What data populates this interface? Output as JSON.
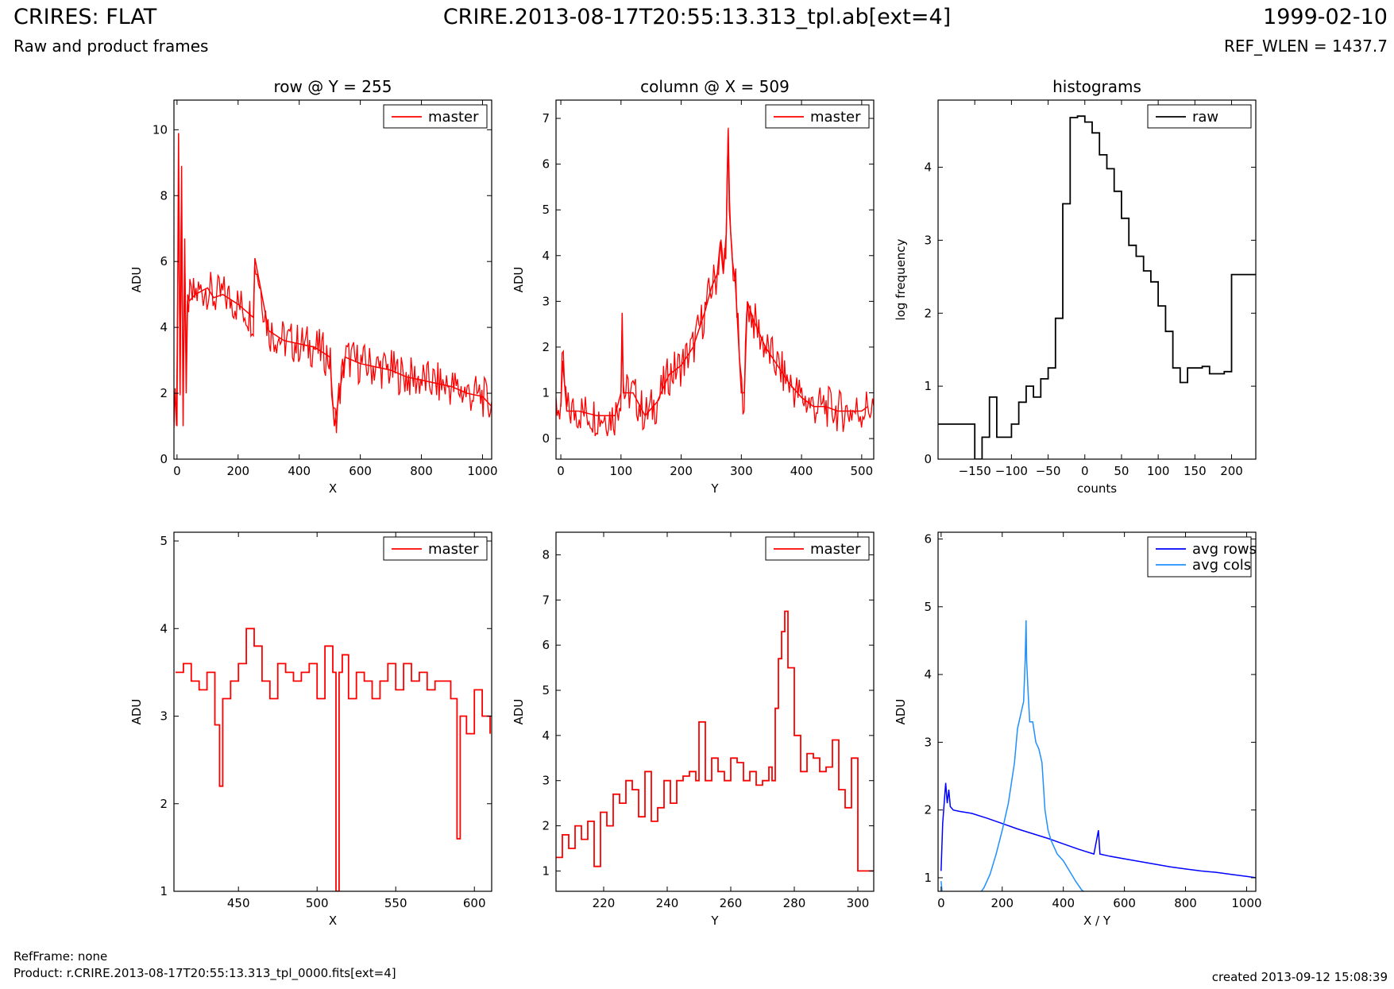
{
  "header": {
    "title_left": "CRIRES: FLAT",
    "subtitle_left": "Raw and product frames",
    "title_center": "CRIRE.2013-08-17T20:55:13.313_tpl.ab[ext=4]",
    "title_right": "1999-02-10",
    "subtitle_right": "REF_WLEN = 1437.7"
  },
  "footer": {
    "ref_frame": "RefFrame: none",
    "product": "Product: r.CRIRE.2013-08-17T20:55:13.313_tpl_0000.fits[ext=4]",
    "created": "created 2013-09-12 15:08:39"
  },
  "colors": {
    "master": "#ff0000",
    "raw": "#000000",
    "avg_rows": "#0000ff",
    "avg_cols": "#1e90ff"
  },
  "chart_data": [
    {
      "type": "line",
      "title": "row @ Y = 255",
      "xlabel": "X",
      "ylabel": "ADU",
      "xlim": [
        -10,
        1030
      ],
      "ylim": [
        0,
        10.9
      ],
      "xticks": [
        0,
        200,
        400,
        600,
        800,
        1000
      ],
      "yticks": [
        0,
        2,
        4,
        6,
        8,
        10
      ],
      "legend": "top-right",
      "series": [
        {
          "name": "master",
          "x": [
            0,
            5,
            10,
            15,
            20,
            25,
            30,
            35,
            40,
            60,
            80,
            100,
            120,
            150,
            200,
            250,
            255,
            300,
            350,
            400,
            450,
            500,
            515,
            550,
            600,
            650,
            700,
            750,
            800,
            850,
            900,
            950,
            1000,
            1030
          ],
          "y": [
            1.0,
            9.9,
            2.0,
            8.9,
            1.0,
            6.7,
            2.0,
            5.0,
            4.8,
            5.0,
            5.1,
            5.2,
            4.9,
            5.0,
            4.7,
            4.3,
            6.1,
            3.9,
            3.6,
            3.5,
            3.4,
            3.1,
            1.0,
            3.1,
            2.9,
            2.8,
            2.7,
            2.5,
            2.4,
            2.3,
            2.2,
            2.0,
            1.9,
            1.6
          ]
        }
      ]
    },
    {
      "type": "line",
      "title": "column @ X = 509",
      "xlabel": "Y",
      "ylabel": "ADU",
      "xlim": [
        -8,
        520
      ],
      "ylim": [
        -0.45,
        7.4
      ],
      "xticks": [
        0,
        100,
        200,
        300,
        400,
        500
      ],
      "yticks": [
        0,
        1,
        2,
        3,
        4,
        5,
        6,
        7
      ],
      "legend": "top-right",
      "series": [
        {
          "name": "master",
          "x": [
            0,
            3,
            10,
            30,
            60,
            90,
            100,
            102,
            104,
            120,
            140,
            160,
            180,
            200,
            220,
            240,
            250,
            260,
            265,
            270,
            275,
            278,
            280,
            285,
            290,
            300,
            305,
            310,
            320,
            340,
            360,
            380,
            400,
            420,
            440,
            460,
            480,
            500,
            510
          ],
          "y": [
            0.7,
            1.7,
            0.6,
            0.6,
            0.5,
            0.5,
            1.0,
            2.75,
            1.0,
            1.0,
            0.5,
            0.8,
            1.4,
            1.6,
            2.0,
            2.8,
            3.3,
            3.6,
            4.3,
            3.6,
            4.5,
            6.75,
            5.0,
            3.9,
            3.4,
            1.0,
            1.0,
            3.0,
            2.6,
            2.0,
            1.6,
            1.2,
            0.9,
            0.7,
            0.7,
            0.6,
            0.6,
            0.6,
            0.7
          ]
        }
      ]
    },
    {
      "type": "line",
      "title": "histograms",
      "xlabel": "counts",
      "ylabel": "log frequency",
      "xlim": [
        -200,
        233
      ],
      "ylim": [
        0,
        4.92
      ],
      "xticks": [
        -150,
        -100,
        -50,
        0,
        50,
        100,
        150,
        200
      ],
      "yticks": [
        0,
        1,
        2,
        3,
        4
      ],
      "legend": "top-right",
      "step": true,
      "series": [
        {
          "name": "raw",
          "x": [
            -200,
            -170,
            -160,
            -150,
            -140,
            -130,
            -120,
            -100,
            -90,
            -80,
            -70,
            -60,
            -50,
            -40,
            -30,
            -20,
            -10,
            0,
            10,
            20,
            30,
            40,
            50,
            60,
            70,
            80,
            90,
            100,
            110,
            120,
            130,
            140,
            150,
            160,
            170,
            190,
            200,
            210,
            220,
            233
          ],
          "y": [
            0.48,
            0.48,
            0.48,
            0.0,
            0.3,
            0.85,
            0.3,
            0.48,
            0.78,
            1.0,
            0.85,
            1.1,
            1.25,
            1.93,
            3.5,
            4.68,
            4.7,
            4.62,
            4.47,
            4.17,
            3.98,
            3.67,
            3.3,
            2.93,
            2.78,
            2.58,
            2.43,
            2.1,
            1.75,
            1.25,
            1.05,
            1.25,
            1.25,
            1.27,
            1.17,
            1.2,
            2.53,
            2.53,
            2.53,
            2.53
          ]
        }
      ]
    },
    {
      "type": "line",
      "xlabel": "X",
      "ylabel": "ADU",
      "xlim": [
        409,
        611
      ],
      "ylim": [
        1,
        5.1
      ],
      "xticks": [
        450,
        500,
        550,
        600
      ],
      "yticks": [
        1,
        2,
        3,
        4,
        5
      ],
      "legend": "top-right",
      "step": true,
      "series": [
        {
          "name": "master",
          "x": [
            410,
            415,
            420,
            425,
            430,
            435,
            438,
            440,
            445,
            450,
            455,
            460,
            465,
            470,
            475,
            480,
            485,
            490,
            495,
            500,
            505,
            510,
            512,
            514,
            516,
            520,
            525,
            530,
            535,
            540,
            545,
            550,
            555,
            560,
            565,
            570,
            575,
            580,
            585,
            589,
            591,
            595,
            600,
            605,
            610
          ],
          "y": [
            3.5,
            3.6,
            3.4,
            3.3,
            3.5,
            2.9,
            2.2,
            3.2,
            3.4,
            3.6,
            4.0,
            3.8,
            3.4,
            3.2,
            3.6,
            3.5,
            3.4,
            3.5,
            3.6,
            3.2,
            3.8,
            3.5,
            1.0,
            3.5,
            3.7,
            3.2,
            3.5,
            3.4,
            3.2,
            3.4,
            3.6,
            3.3,
            3.6,
            3.4,
            3.5,
            3.3,
            3.4,
            3.4,
            3.2,
            1.6,
            3.0,
            2.8,
            3.3,
            3.0,
            2.8
          ]
        }
      ]
    },
    {
      "type": "line",
      "xlabel": "Y",
      "ylabel": "ADU",
      "xlim": [
        205,
        305
      ],
      "ylim": [
        0.55,
        8.5
      ],
      "xticks": [
        220,
        240,
        260,
        280,
        300
      ],
      "yticks": [
        1,
        2,
        3,
        4,
        5,
        6,
        7,
        8
      ],
      "legend": "top-right",
      "step": true,
      "series": [
        {
          "name": "master",
          "x": [
            205,
            207,
            209,
            211,
            213,
            215,
            217,
            219,
            221,
            223,
            225,
            227,
            229,
            231,
            233,
            235,
            237,
            239,
            241,
            243,
            245,
            247,
            249,
            250,
            252,
            254,
            256,
            258,
            260,
            262,
            264,
            266,
            268,
            270,
            272,
            273,
            274,
            275,
            276,
            277,
            278,
            280,
            282,
            284,
            286,
            288,
            290,
            292,
            294,
            296,
            298,
            300,
            302,
            305
          ],
          "y": [
            1.3,
            1.8,
            1.5,
            2.0,
            1.7,
            2.1,
            1.1,
            2.3,
            2.0,
            2.7,
            2.5,
            3.0,
            2.8,
            2.2,
            3.2,
            2.1,
            2.4,
            3.0,
            2.5,
            3.0,
            3.1,
            3.2,
            3.0,
            4.3,
            3.0,
            3.5,
            3.2,
            3.0,
            3.5,
            3.4,
            3.0,
            3.2,
            2.9,
            3.0,
            3.3,
            3.0,
            4.6,
            5.7,
            6.3,
            6.75,
            5.5,
            4.0,
            3.2,
            3.6,
            3.5,
            3.2,
            3.3,
            3.9,
            2.8,
            2.4,
            3.5,
            1.0,
            1.0,
            1.0
          ]
        }
      ]
    },
    {
      "type": "line",
      "xlabel": "X / Y",
      "ylabel": "ADU",
      "xlim": [
        -10,
        1030
      ],
      "ylim": [
        0.8,
        6.1
      ],
      "xticks": [
        0,
        200,
        400,
        600,
        800,
        1000
      ],
      "yticks": [
        1,
        2,
        3,
        4,
        5,
        6
      ],
      "legend": "top-right",
      "series": [
        {
          "name": "avg rows",
          "x": [
            0,
            5,
            10,
            15,
            20,
            25,
            30,
            40,
            60,
            100,
            150,
            200,
            250,
            300,
            350,
            400,
            450,
            500,
            515,
            520,
            550,
            600,
            650,
            700,
            750,
            800,
            850,
            900,
            950,
            1000,
            1030
          ],
          "y": [
            1.1,
            1.8,
            2.1,
            2.4,
            2.1,
            2.3,
            2.05,
            2.0,
            1.98,
            1.95,
            1.88,
            1.8,
            1.72,
            1.65,
            1.58,
            1.5,
            1.42,
            1.35,
            1.7,
            1.35,
            1.32,
            1.28,
            1.24,
            1.2,
            1.16,
            1.13,
            1.1,
            1.08,
            1.05,
            1.02,
            1.0
          ]
        },
        {
          "name": "avg cols",
          "x": [
            0,
            5,
            20,
            50,
            80,
            100,
            120,
            140,
            160,
            180,
            200,
            220,
            240,
            250,
            260,
            270,
            275,
            278,
            280,
            285,
            290,
            300,
            310,
            320,
            330,
            340,
            350,
            360,
            380,
            400,
            420,
            440,
            460,
            480,
            500,
            510
          ],
          "y": [
            0.95,
            0.7,
            0.65,
            0.63,
            0.63,
            0.66,
            0.73,
            0.85,
            1.05,
            1.35,
            1.7,
            2.1,
            2.7,
            3.2,
            3.4,
            3.6,
            4.2,
            4.8,
            4.2,
            3.7,
            3.3,
            3.3,
            3.0,
            2.9,
            2.7,
            2.0,
            1.7,
            1.55,
            1.35,
            1.25,
            1.1,
            0.95,
            0.82,
            0.75,
            0.7,
            0.75
          ]
        }
      ]
    }
  ]
}
